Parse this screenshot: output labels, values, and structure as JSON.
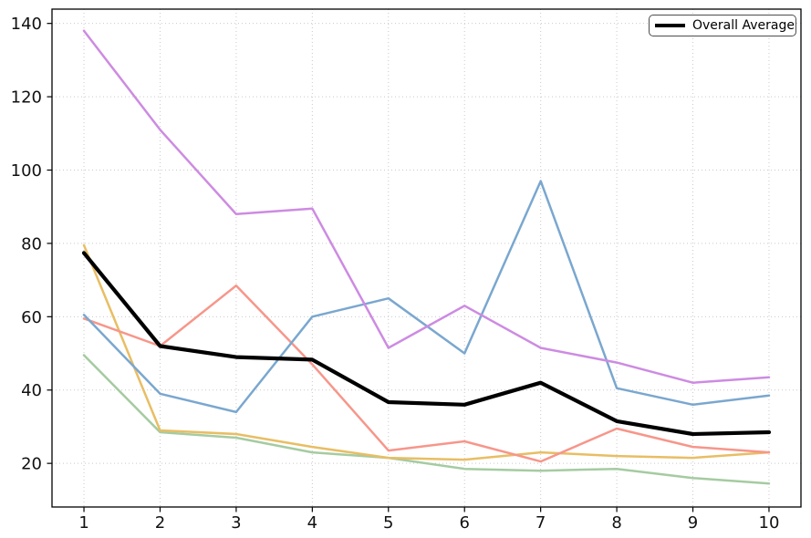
{
  "chart_data": {
    "type": "line",
    "title": "",
    "xlabel": "",
    "ylabel": "",
    "x": [
      1,
      2,
      3,
      4,
      5,
      6,
      7,
      8,
      9,
      10
    ],
    "x_tick_labels": [
      "1",
      "2",
      "3",
      "4",
      "5",
      "6",
      "7",
      "8",
      "9",
      "10"
    ],
    "y_ticks": [
      20,
      40,
      60,
      80,
      100,
      120,
      140
    ],
    "y_tick_labels": [
      "20",
      "40",
      "60",
      "80",
      "100",
      "120",
      "140"
    ],
    "xlim": [
      0.58,
      10.42
    ],
    "ylim": [
      8.1,
      143.9
    ],
    "grid": {
      "shown": true,
      "style": "dotted",
      "color": "#c9c9c9"
    },
    "background_color": "#ffffff",
    "spine_color": "#000000",
    "legend": {
      "position": "top-right",
      "entries": [
        {
          "label": "Overall Average",
          "color": "#000000",
          "linewidth": 4
        }
      ]
    },
    "series": [
      {
        "name": "green",
        "color": "#a5cba1",
        "linewidth": 2.5,
        "values": [
          49.5,
          28.5,
          27,
          23,
          21.5,
          18.5,
          18,
          18.5,
          16,
          14.5
        ]
      },
      {
        "name": "gold",
        "color": "#e8be64",
        "linewidth": 2.5,
        "values": [
          79.5,
          29,
          28,
          24.5,
          21.5,
          21,
          23,
          22,
          21.5,
          23
        ]
      },
      {
        "name": "salmon",
        "color": "#f7968a",
        "linewidth": 2.5,
        "values": [
          59.5,
          52,
          68.5,
          47,
          23.5,
          26,
          20.5,
          29.5,
          24.5,
          23
        ]
      },
      {
        "name": "blue",
        "color": "#7aa7cf",
        "linewidth": 2.5,
        "values": [
          60.5,
          39,
          34,
          60,
          65,
          50,
          97,
          40.5,
          36,
          38.5
        ]
      },
      {
        "name": "violet",
        "color": "#cd8be2",
        "linewidth": 2.5,
        "values": [
          138,
          111,
          88,
          89.5,
          51.5,
          63,
          51.5,
          47.5,
          42,
          43.5
        ]
      },
      {
        "name": "overall-average",
        "label": "Overall Average",
        "color": "#000000",
        "linewidth": 4.2,
        "values": [
          77.4,
          52,
          49,
          48.3,
          36.7,
          36,
          42,
          31.5,
          28,
          28.5
        ]
      }
    ]
  }
}
